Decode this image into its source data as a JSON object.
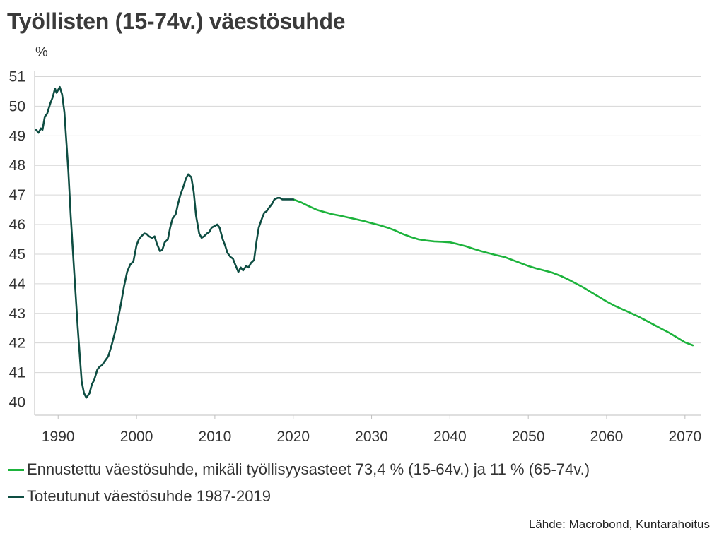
{
  "title": "Työllisten (15-74v.) väestösuhde",
  "source": "Lähde: Macrobond, Kuntarahoitus",
  "colors": {
    "forecast": "#1db33c",
    "actual": "#0e4d42",
    "grid": "#d6d6d6"
  },
  "chart_data": {
    "type": "line",
    "title": "Työllisten (15-74v.) väestösuhde",
    "ylabel": "%",
    "xlabel": "",
    "xlim": [
      1987,
      2072
    ],
    "ylim": [
      40,
      51
    ],
    "x_ticks": [
      1990,
      2000,
      2010,
      2020,
      2030,
      2040,
      2050,
      2060,
      2070
    ],
    "y_ticks": [
      40,
      41,
      42,
      43,
      44,
      45,
      46,
      47,
      48,
      49,
      50,
      51
    ],
    "grid": true,
    "legend_position": "bottom",
    "series": [
      {
        "name": "Ennustettu väestösuhde, mikäli työllisyysasteet 73,4 % (15-64v.) ja 11 % (65-74v.)",
        "color": "#1db33c",
        "x": [
          2020,
          2021,
          2022,
          2023,
          2024,
          2025,
          2026,
          2027,
          2028,
          2029,
          2030,
          2031,
          2032,
          2033,
          2034,
          2035,
          2036,
          2037,
          2038,
          2039,
          2040,
          2041,
          2042,
          2043,
          2044,
          2045,
          2046,
          2047,
          2048,
          2049,
          2050,
          2051,
          2052,
          2053,
          2054,
          2055,
          2056,
          2057,
          2058,
          2059,
          2060,
          2061,
          2062,
          2063,
          2064,
          2065,
          2066,
          2067,
          2068,
          2069,
          2070,
          2071
        ],
        "y": [
          46.85,
          46.75,
          46.62,
          46.5,
          46.42,
          46.35,
          46.3,
          46.24,
          46.18,
          46.12,
          46.05,
          45.98,
          45.9,
          45.8,
          45.68,
          45.58,
          45.5,
          45.46,
          45.43,
          45.42,
          45.4,
          45.34,
          45.27,
          45.18,
          45.1,
          45.03,
          44.96,
          44.9,
          44.8,
          44.7,
          44.6,
          44.52,
          44.45,
          44.38,
          44.28,
          44.16,
          44.02,
          43.88,
          43.72,
          43.56,
          43.4,
          43.26,
          43.14,
          43.02,
          42.9,
          42.76,
          42.62,
          42.48,
          42.34,
          42.18,
          42.02,
          41.92
        ]
      },
      {
        "name": "Toteutunut väestösuhde 1987-2019",
        "color": "#0e4d42",
        "x": [
          1987.2,
          1987.5,
          1987.8,
          1988.0,
          1988.3,
          1988.6,
          1989.0,
          1989.3,
          1989.6,
          1989.8,
          1990.0,
          1990.2,
          1990.5,
          1990.8,
          1991.0,
          1991.3,
          1991.6,
          1992.0,
          1992.5,
          1993.0,
          1993.3,
          1993.6,
          1994.0,
          1994.3,
          1994.6,
          1995.0,
          1995.3,
          1995.6,
          1996.0,
          1996.4,
          1996.8,
          1997.2,
          1997.6,
          1998.0,
          1998.4,
          1998.8,
          1999.2,
          1999.6,
          2000.0,
          2000.3,
          2000.6,
          2001.0,
          2001.3,
          2001.6,
          2002.0,
          2002.3,
          2002.6,
          2003.0,
          2003.3,
          2003.6,
          2004.0,
          2004.3,
          2004.6,
          2005.0,
          2005.3,
          2005.6,
          2006.0,
          2006.3,
          2006.6,
          2007.0,
          2007.3,
          2007.6,
          2008.0,
          2008.3,
          2008.6,
          2009.0,
          2009.3,
          2009.6,
          2010.0,
          2010.3,
          2010.6,
          2011.0,
          2011.3,
          2011.6,
          2012.0,
          2012.3,
          2012.6,
          2013.0,
          2013.3,
          2013.6,
          2014.0,
          2014.3,
          2014.6,
          2015.0,
          2015.3,
          2015.6,
          2016.0,
          2016.3,
          2016.6,
          2017.0,
          2017.3,
          2017.6,
          2018.0,
          2018.3,
          2018.6,
          2019.0,
          2019.3,
          2019.6,
          2020.0
        ],
        "y": [
          49.2,
          49.1,
          49.25,
          49.2,
          49.65,
          49.75,
          50.1,
          50.3,
          50.6,
          50.45,
          50.55,
          50.65,
          50.4,
          49.8,
          49.0,
          47.8,
          46.3,
          44.6,
          42.5,
          40.7,
          40.3,
          40.15,
          40.3,
          40.6,
          40.75,
          41.1,
          41.2,
          41.25,
          41.4,
          41.55,
          41.9,
          42.3,
          42.75,
          43.3,
          43.9,
          44.4,
          44.65,
          44.75,
          45.3,
          45.5,
          45.6,
          45.7,
          45.68,
          45.6,
          45.55,
          45.6,
          45.35,
          45.1,
          45.15,
          45.4,
          45.5,
          45.9,
          46.2,
          46.35,
          46.7,
          47.0,
          47.3,
          47.55,
          47.7,
          47.6,
          47.1,
          46.3,
          45.7,
          45.55,
          45.6,
          45.7,
          45.75,
          45.9,
          45.95,
          46.0,
          45.9,
          45.5,
          45.3,
          45.05,
          44.9,
          44.85,
          44.65,
          44.4,
          44.55,
          44.45,
          44.6,
          44.55,
          44.7,
          44.8,
          45.4,
          45.9,
          46.2,
          46.4,
          46.45,
          46.6,
          46.7,
          46.85,
          46.9,
          46.9,
          46.85,
          46.85,
          46.85,
          46.85,
          46.85
        ]
      }
    ]
  },
  "legend": [
    {
      "label": "Ennustettu väestösuhde, mikäli työllisyysasteet 73,4 % (15-64v.) ja 11 % (65-74v.)",
      "color": "#1db33c"
    },
    {
      "label": "Toteutunut väestösuhde 1987-2019",
      "color": "#0e4d42"
    }
  ]
}
